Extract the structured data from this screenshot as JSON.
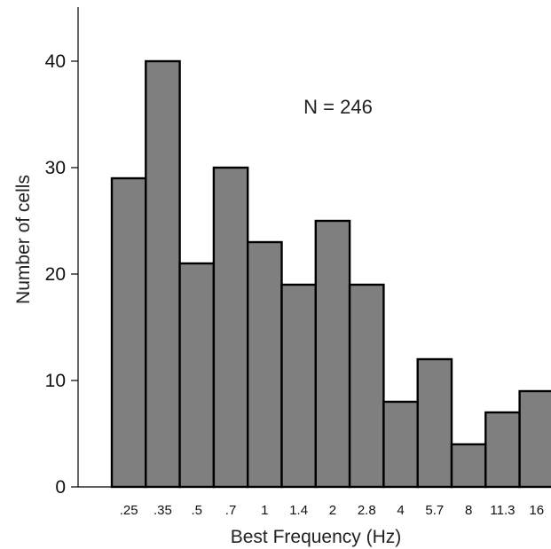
{
  "chart_data": {
    "type": "bar",
    "categories": [
      ".25",
      ".35",
      ".5",
      ".7",
      "1",
      "1.4",
      "2",
      "2.8",
      "4",
      "5.7",
      "8",
      "11.3",
      "16"
    ],
    "values": [
      29,
      40,
      21,
      30,
      23,
      19,
      25,
      19,
      8,
      12,
      4,
      7,
      9
    ],
    "xlabel": "Best Frequency (Hz)",
    "ylabel": "Number of cells",
    "ylim": [
      0,
      45
    ],
    "yticks": [
      0,
      10,
      20,
      30,
      40
    ],
    "annotation": "N = 246",
    "bar_color": "#7f7f7f",
    "edge_color": "#000000",
    "grid": false,
    "legend": "none"
  }
}
